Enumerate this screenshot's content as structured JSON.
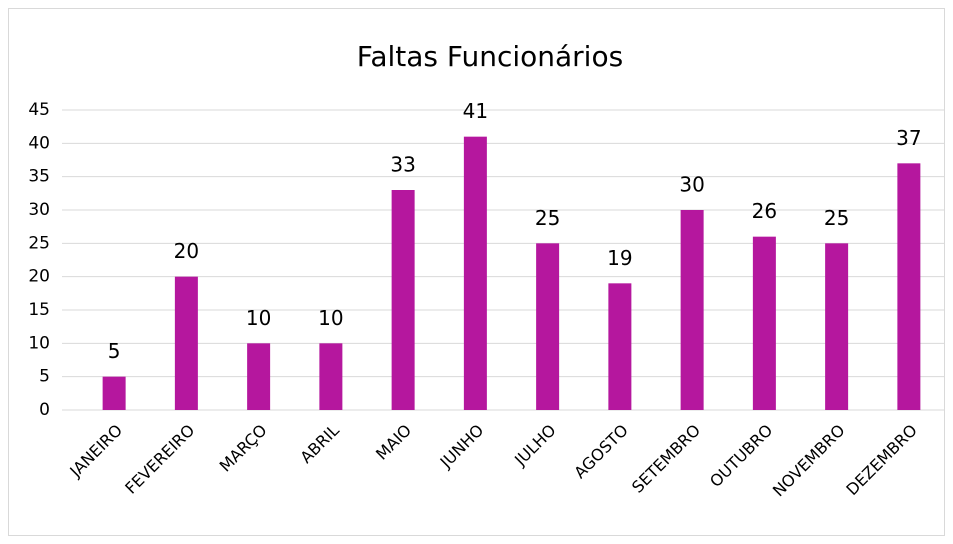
{
  "chart_data": {
    "type": "bar",
    "title": "Faltas Funcionários",
    "categories": [
      "JANEIRO",
      "FEVEREIRO",
      "MARÇO",
      "ABRIL",
      "MAIO",
      "JUNHO",
      "JULHO",
      "AGOSTO",
      "SETEMBRO",
      "OUTUBRO",
      "NOVEMBRO",
      "DEZEMBRO"
    ],
    "values": [
      5,
      20,
      10,
      10,
      33,
      41,
      25,
      19,
      30,
      26,
      25,
      37
    ],
    "color": "#b5179e",
    "ylim": [
      0,
      45
    ],
    "yticks": [
      0,
      5,
      10,
      15,
      20,
      25,
      30,
      35,
      40,
      45
    ],
    "grid": true
  }
}
